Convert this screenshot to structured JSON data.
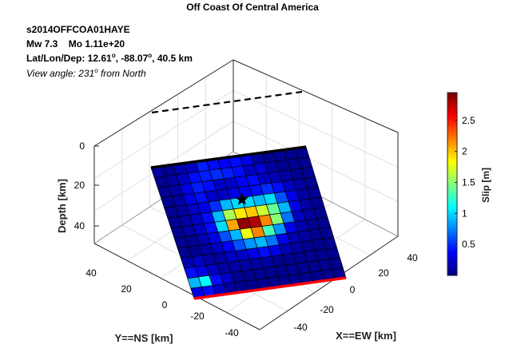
{
  "figure": {
    "title": "Off Coast Of Central America",
    "event_id": "s2014OFFCOA01HAYE",
    "mw_label": "Mw 7.3",
    "mo_label": "Mo 1.11e+20",
    "loc_prefix": "Lat/Lon/Dep: 12.61",
    "loc_lat_deg": "o",
    "loc_lon": ", -88.07",
    "loc_lon_deg": "o",
    "loc_dep": ", 40.5 km",
    "view_prefix": "View angle: 231",
    "view_deg": "o",
    "view_suffix": " from North"
  },
  "chart_data": {
    "type": "heatmap",
    "title": "Off Coast Of Central America",
    "axes": {
      "z": {
        "label": "Depth [km]",
        "ticks": [
          "0",
          "20",
          "40"
        ],
        "range": [
          0,
          55
        ]
      },
      "y": {
        "label": "Y==NS [km]",
        "ticks": [
          "40",
          "20",
          "0",
          "-20",
          "-40"
        ],
        "range": [
          -50,
          50
        ]
      },
      "x": {
        "label": "X==EW [km]",
        "ticks": [
          "40",
          "20",
          "0",
          "-20",
          "-40"
        ],
        "range": [
          -50,
          50
        ]
      }
    },
    "grid": true,
    "colorbar": {
      "label": "Slip [m]",
      "ticks": [
        "0.5",
        "1",
        "1.5",
        "2",
        "2.5"
      ],
      "tick_values": [
        0.5,
        1,
        1.5,
        2,
        2.5
      ],
      "range": [
        0,
        2.95
      ],
      "colormap": "jet"
    },
    "fault": {
      "n_strike": 14,
      "n_dip": 13,
      "hypocenter": {
        "strike_index": 7,
        "dip_index": 4.2
      },
      "slip_rows": [
        [
          0.1,
          0.05,
          0.15,
          0.2,
          0.45,
          0.4,
          0.35,
          0.4,
          0.3,
          0.1,
          0.05,
          0.05,
          0.05,
          0.05
        ],
        [
          0.05,
          0.1,
          0.2,
          0.4,
          0.45,
          0.5,
          0.45,
          0.4,
          0.2,
          0.25,
          0.1,
          0.05,
          0.05,
          0.05
        ],
        [
          0.05,
          0.1,
          0.3,
          0.45,
          0.4,
          0.2,
          0.2,
          0.35,
          0.4,
          0.2,
          0.15,
          0.1,
          0.05,
          0.05
        ],
        [
          0.05,
          0.1,
          0.3,
          0.4,
          0.2,
          0.2,
          0.3,
          0.35,
          0.4,
          0.5,
          0.4,
          0.2,
          0.1,
          0.05
        ],
        [
          0.05,
          0.1,
          0.2,
          0.3,
          0.5,
          0.9,
          1.0,
          1.0,
          0.9,
          1.0,
          0.6,
          0.3,
          0.1,
          0.05
        ],
        [
          0.05,
          0.1,
          0.2,
          0.4,
          0.9,
          1.6,
          1.9,
          2.0,
          1.7,
          1.4,
          0.9,
          0.3,
          0.1,
          0.05
        ],
        [
          0.05,
          0.1,
          0.2,
          0.4,
          1.0,
          2.1,
          2.9,
          2.8,
          2.2,
          1.5,
          0.7,
          0.2,
          0.1,
          0.05
        ],
        [
          0.05,
          0.05,
          0.15,
          0.3,
          0.6,
          0.9,
          1.8,
          2.2,
          1.3,
          0.8,
          0.3,
          0.15,
          0.05,
          0.05
        ],
        [
          0.05,
          0.05,
          0.1,
          0.2,
          0.35,
          0.6,
          0.8,
          0.9,
          0.7,
          0.3,
          0.15,
          0.1,
          0.05,
          0.05
        ],
        [
          0.15,
          0.2,
          0.1,
          0.1,
          0.2,
          0.2,
          0.3,
          0.4,
          0.3,
          0.15,
          0.1,
          0.05,
          0.05,
          0.05
        ],
        [
          0.4,
          0.3,
          0.2,
          0.1,
          0.1,
          0.1,
          0.1,
          0.1,
          0.05,
          0.05,
          0.05,
          0.05,
          0.05,
          0.05
        ],
        [
          0.9,
          1.1,
          0.4,
          0.2,
          0.05,
          0.05,
          0.05,
          0.05,
          0.05,
          0.05,
          0.05,
          0.05,
          0.05,
          0.05
        ],
        [
          0.3,
          0.4,
          0.2,
          0.1,
          0.05,
          0.05,
          0.05,
          0.05,
          0.05,
          0.05,
          0.05,
          0.05,
          0.05,
          0.05
        ]
      ]
    },
    "edges": {
      "top_edge_color": "#000000",
      "bottom_edge_color": "#ff0000",
      "surface_trace": "dashed"
    }
  }
}
